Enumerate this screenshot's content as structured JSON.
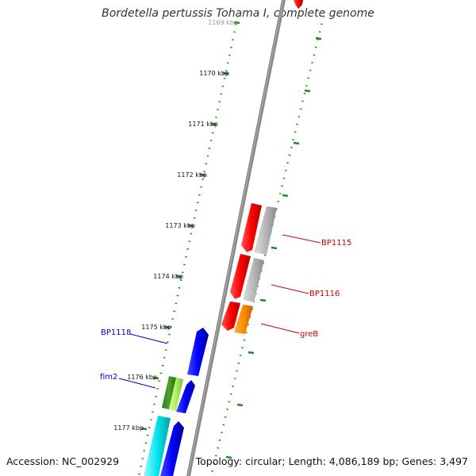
{
  "title": "Bordetella pertussis Tohama I, complete genome",
  "footer": {
    "accession": "Accession: NC_002929",
    "topology": "Topology: circular; Length: 4,086,189 bp; Genes: 3,497"
  },
  "ticks": [
    {
      "label": "1169 kbp",
      "faded": true
    },
    {
      "label": "1170 kbp"
    },
    {
      "label": "1171 kbp"
    },
    {
      "label": "1172 kbp"
    },
    {
      "label": "1173 kbp"
    },
    {
      "label": "1174 kbp"
    },
    {
      "label": "1175 kbp"
    },
    {
      "label": "1176 kbp"
    },
    {
      "label": "1177 kbp"
    }
  ],
  "gene_labels": [
    {
      "name": "BP1115",
      "color": "#cc0000"
    },
    {
      "name": "BP1116",
      "color": "#cc0000"
    },
    {
      "name": "greB",
      "color": "#cc0000"
    },
    {
      "name": "BP1118",
      "color": "#0000cc"
    },
    {
      "name": "fim2",
      "color": "#0000cc"
    }
  ],
  "colors": {
    "backbone": "#888888",
    "tick": "#228B22",
    "red_gene": "#ff0000",
    "gray_gene": "#b3b3b3",
    "orange_gene": "#ff8c00",
    "blue_gene": "#0000ff",
    "green_gene": "#4ca32e",
    "lightgreen_gene": "#aef060",
    "cyan_gene": "#00e5ee"
  }
}
